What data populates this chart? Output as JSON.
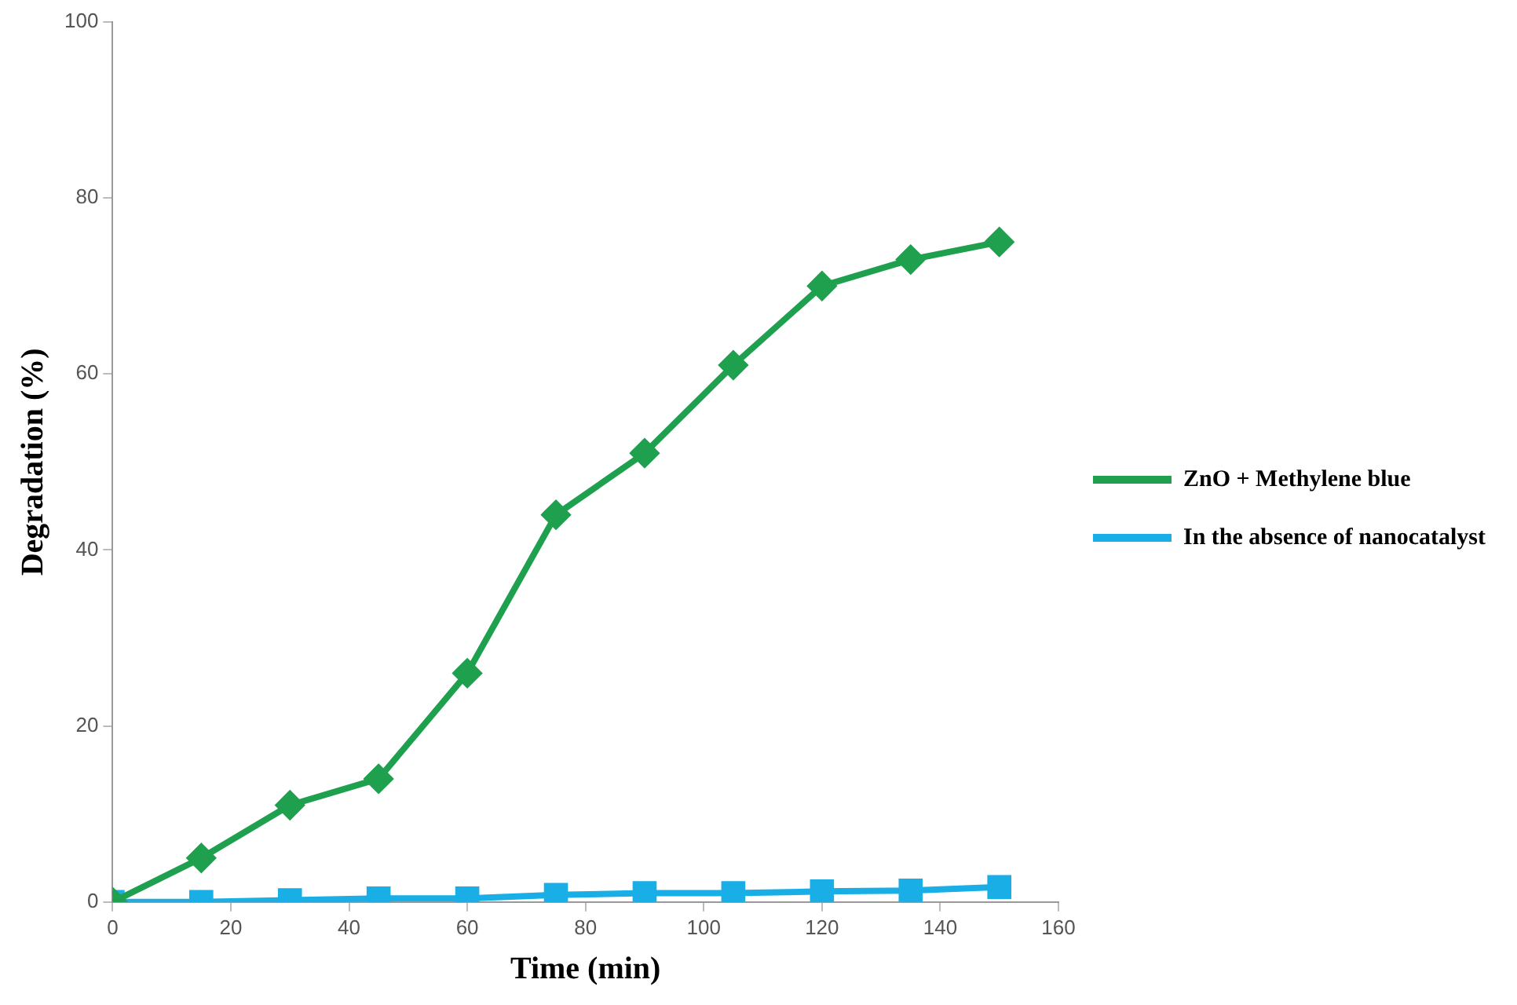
{
  "chart_data": {
    "type": "line",
    "xlabel": "Time (min)",
    "ylabel": "Degradation (%)",
    "x": [
      0,
      15,
      30,
      45,
      60,
      75,
      90,
      105,
      120,
      135,
      150
    ],
    "xlim": [
      0,
      160
    ],
    "xticks": [
      0,
      20,
      40,
      60,
      80,
      100,
      120,
      140,
      160
    ],
    "ylim": [
      0,
      100
    ],
    "yticks": [
      0,
      20,
      40,
      60,
      80,
      100
    ],
    "grid": false,
    "legend": "right",
    "series": [
      {
        "name": "ZnO + Methylene blue",
        "color": "#1fa04f",
        "marker": "diamond",
        "values": [
          0,
          5,
          11,
          14,
          26,
          44,
          51,
          61,
          70,
          73,
          75
        ]
      },
      {
        "name": "In the absence of nanocatalyst",
        "color": "#19aee6",
        "marker": "square",
        "values": [
          0,
          0,
          0.2,
          0.4,
          0.4,
          0.8,
          1,
          1,
          1.2,
          1.3,
          1.7
        ]
      }
    ]
  }
}
